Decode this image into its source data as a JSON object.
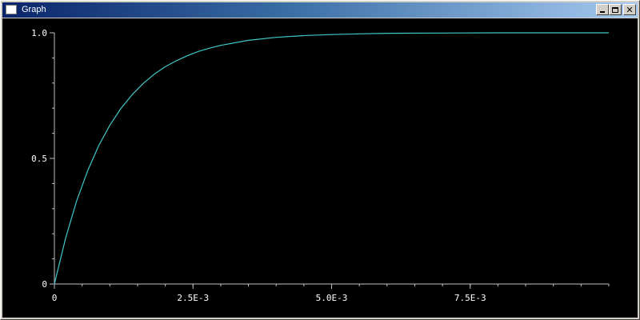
{
  "window": {
    "title": "Graph",
    "controls": {
      "minimize": "minimize",
      "maximize": "maximize",
      "close": "close"
    }
  },
  "colors": {
    "titlebar_start": "#0a246a",
    "titlebar_end": "#a6caf0",
    "plot_background": "#000000",
    "axis": "#c0c0c0",
    "curve": "#40c8c8",
    "text": "#ffffff"
  },
  "chart_data": {
    "type": "line",
    "title": "",
    "xlabel": "",
    "ylabel": "",
    "xlim": [
      0,
      0.01
    ],
    "ylim": [
      0,
      1.0
    ],
    "grid": false,
    "x_ticks": [
      {
        "value": 0,
        "label": "0"
      },
      {
        "value": 0.0025,
        "label": "2.5E-3"
      },
      {
        "value": 0.005,
        "label": "5.0E-3"
      },
      {
        "value": 0.0075,
        "label": "7.5E-3"
      }
    ],
    "y_ticks": [
      {
        "value": 0,
        "label": "0"
      },
      {
        "value": 0.5,
        "label": "0.5"
      },
      {
        "value": 1.0,
        "label": "1.0"
      }
    ],
    "series": [
      {
        "x": [
          0,
          0.0002,
          0.0004,
          0.0006,
          0.0008,
          0.001,
          0.0012,
          0.0014,
          0.0016,
          0.0018,
          0.002,
          0.0022,
          0.0024,
          0.0026,
          0.0028,
          0.003,
          0.0035,
          0.004,
          0.0045,
          0.005,
          0.0055,
          0.006,
          0.007,
          0.008,
          0.009,
          0.01
        ],
        "y": [
          0,
          0.181,
          0.33,
          0.451,
          0.551,
          0.632,
          0.699,
          0.753,
          0.798,
          0.835,
          0.865,
          0.889,
          0.909,
          0.926,
          0.939,
          0.95,
          0.97,
          0.982,
          0.989,
          0.993,
          0.996,
          0.998,
          0.999,
          1.0,
          1.0,
          1.0
        ]
      }
    ]
  }
}
